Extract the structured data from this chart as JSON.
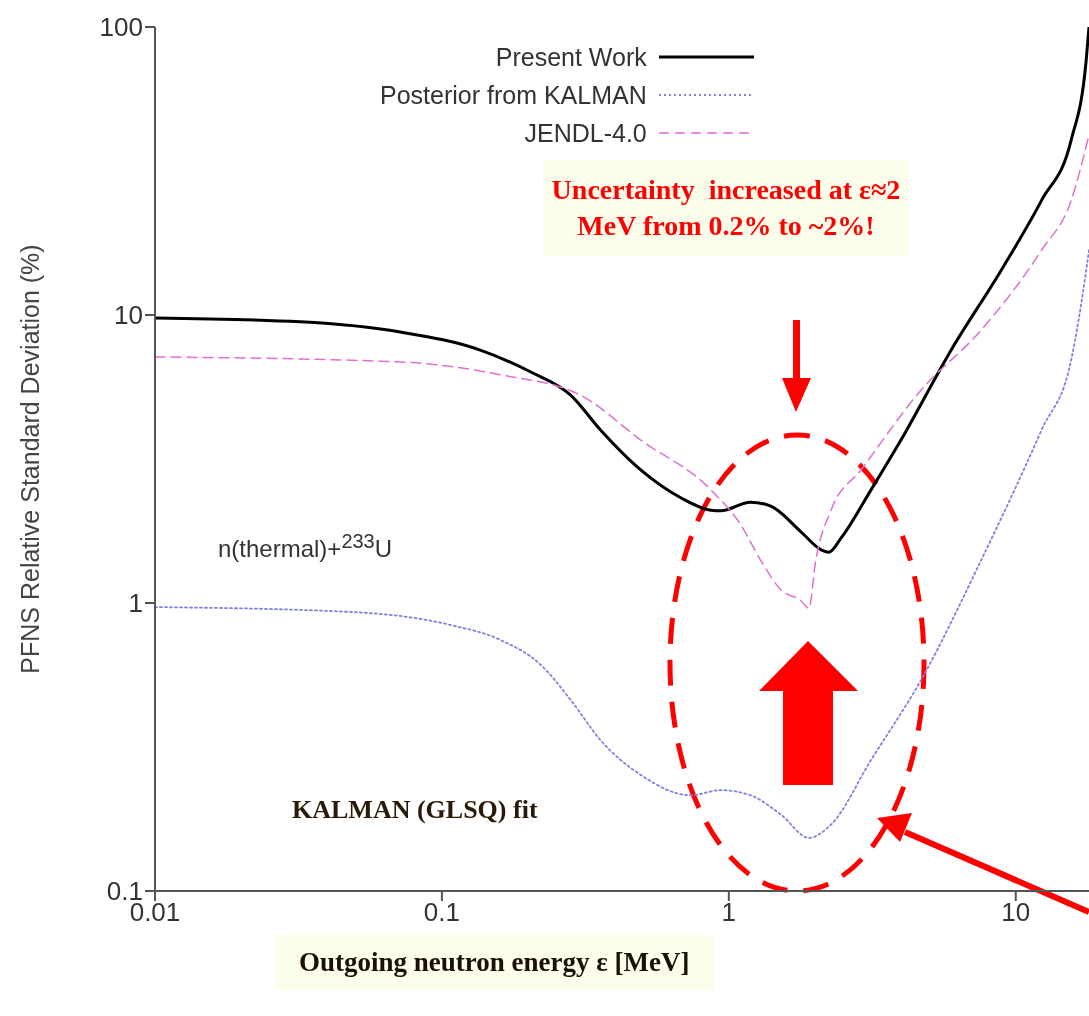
{
  "chart_data": {
    "type": "line",
    "xlabel": "Outgoing neutron energy ε [MeV]",
    "ylabel": "PFNS Relative Standard Deviation (%)",
    "log": "xy",
    "xlim": [
      0.01,
      18
    ],
    "xticks": [
      0.01,
      0.1,
      1,
      10
    ],
    "ylim": [
      0.1,
      100
    ],
    "yticks": [
      0.1,
      1,
      10,
      100
    ],
    "legend": "top",
    "grid": false,
    "series": [
      {
        "name": "Present Work",
        "color": "#000000",
        "line_style": "solid",
        "x": [
          0.01,
          0.0321,
          0.0716,
          0.136,
          0.204,
          0.281,
          0.357,
          0.493,
          0.68,
          0.866,
          0.938,
          1.19,
          1.4,
          1.78,
          2.1,
          2.23,
          2.46,
          3.13,
          3.98,
          5.95,
          8.9,
          12.3,
          15.6,
          17.6,
          18
        ],
        "values": [
          9.77,
          9.47,
          8.73,
          7.55,
          6.34,
          5.27,
          3.99,
          2.9,
          2.32,
          2.1,
          2.09,
          2.24,
          2.17,
          1.77,
          1.53,
          1.5,
          1.68,
          2.47,
          3.68,
          7.55,
          14.3,
          25,
          40.5,
          76.7,
          100
        ]
      },
      {
        "name": "Posterior from KALMAN",
        "color": "#8080e0",
        "line_style": "dotted",
        "x": [
          0.01,
          0.048,
          0.107,
          0.16,
          0.221,
          0.281,
          0.357,
          0.493,
          0.736,
          0.938,
          1.19,
          1.52,
          1.9,
          2.27,
          3.13,
          4.68,
          7.58,
          12.3,
          15.6,
          17.6,
          18
        ],
        "values": [
          0.968,
          0.931,
          0.839,
          0.744,
          0.61,
          0.461,
          0.334,
          0.253,
          0.215,
          0.224,
          0.215,
          0.184,
          0.153,
          0.17,
          0.285,
          0.541,
          1.41,
          3.99,
          6.98,
          14.3,
          16.8
        ]
      },
      {
        "name": "JENDL-4.0",
        "color": "#e070d0",
        "line_style": "dashed",
        "x": [
          0.01,
          0.0716,
          0.16,
          0.304,
          0.493,
          0.866,
          1.1,
          1.29,
          1.52,
          1.78,
          1.9,
          2.01,
          2.27,
          2.89,
          4.68,
          7.58,
          12.3,
          15.6,
          18
        ],
        "values": [
          7.15,
          6.87,
          6.2,
          5.27,
          3.68,
          2.47,
          1.87,
          1.41,
          1.11,
          1.02,
          0.96,
          1.41,
          2.1,
          2.9,
          5.49,
          8.87,
          16.8,
          25,
          42.2
        ]
      }
    ],
    "annotations": [
      "Uncertainty  increased at ε≈2 MeV from 0.2% to ~2%!",
      "KALMAN (GLSQ) fit",
      "n(thermal)+$^{233}$U"
    ]
  }
}
